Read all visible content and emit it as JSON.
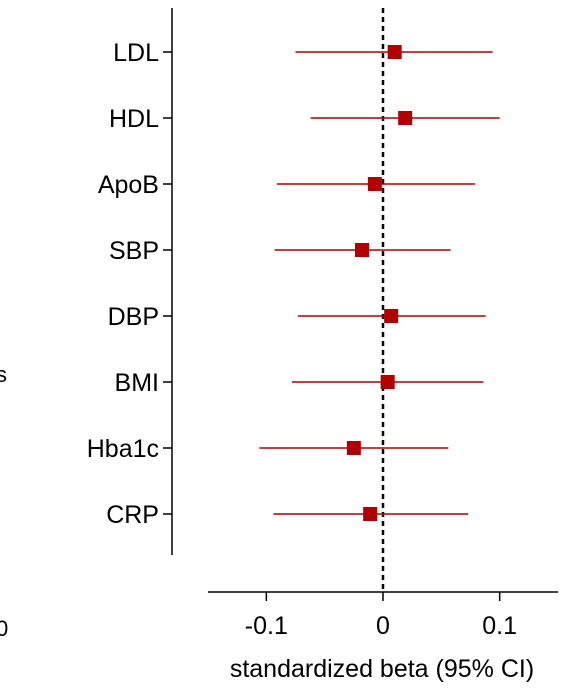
{
  "chart_data": {
    "type": "forest",
    "title": "",
    "xlabel": "standardized beta (95% CI)",
    "ylabel": "",
    "xlim": [
      -0.15,
      0.15
    ],
    "x_ticks": [
      -0.1,
      0,
      0.1
    ],
    "x_tick_labels": [
      "-0.1",
      "0",
      "0.1"
    ],
    "reference_line": 0,
    "categories": [
      "LDL",
      "HDL",
      "ApoB",
      "SBP",
      "DBP",
      "BMI",
      "Hba1c",
      "CRP"
    ],
    "estimates": [
      0.01,
      0.019,
      -0.007,
      -0.018,
      0.007,
      0.004,
      -0.025,
      -0.011
    ],
    "ci_lower": [
      -0.075,
      -0.062,
      -0.091,
      -0.093,
      -0.073,
      -0.078,
      -0.106,
      -0.094
    ],
    "ci_upper": [
      0.094,
      0.1,
      0.079,
      0.058,
      0.088,
      0.086,
      0.056,
      0.073
    ],
    "marker_color": "#b00000",
    "line_color": "#b00000",
    "grid": false
  },
  "edge_fragments": {
    "left_middle": "s",
    "left_bottom": "0"
  }
}
